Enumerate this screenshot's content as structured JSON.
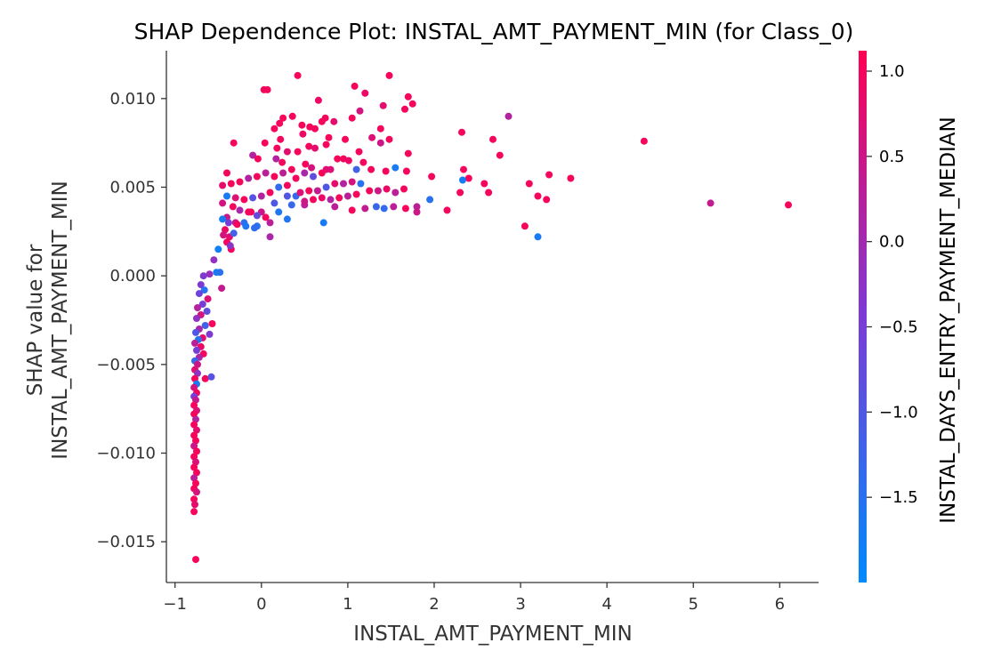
{
  "chart_data": {
    "type": "scatter",
    "title": "SHAP Dependence Plot: INSTAL_AMT_PAYMENT_MIN (for Class_0)",
    "xlabel": "INSTAL_AMT_PAYMENT_MIN",
    "ylabel_lines": [
      "SHAP value for",
      "INSTAL_AMT_PAYMENT_MIN"
    ],
    "xlim": [
      -1.1,
      6.45
    ],
    "ylim": [
      -0.0173,
      0.0127
    ],
    "x_ticks": [
      -1,
      0,
      1,
      2,
      3,
      4,
      5,
      6
    ],
    "x_tick_labels": [
      "−1",
      "0",
      "1",
      "2",
      "3",
      "4",
      "5",
      "6"
    ],
    "y_ticks": [
      -0.015,
      -0.01,
      -0.005,
      0.0,
      0.005,
      0.01
    ],
    "y_tick_labels": [
      "−0.015",
      "−0.010",
      "−0.005",
      "0.000",
      "0.005",
      "0.010"
    ],
    "grid": false,
    "colorbar": {
      "label": "INSTAL_DAYS_ENTRY_PAYMENT_MEDIAN",
      "range": [
        -2.0,
        1.12
      ],
      "ticks": [
        1.0,
        0.5,
        0.0,
        -0.5,
        -1.0,
        -1.5
      ],
      "tick_labels": [
        "1.0",
        "0.5",
        "0.0",
        "−0.5",
        "−1.0",
        "−1.5"
      ],
      "colors": [
        "#008afb",
        "#7c3bd6",
        "#ff0052"
      ]
    },
    "points": [
      {
        "x": 0.42,
        "y": 0.0113,
        "c": 1.0
      },
      {
        "x": 1.48,
        "y": 0.0113,
        "c": 1.0
      },
      {
        "x": 1.08,
        "y": 0.0107,
        "c": 1.0
      },
      {
        "x": 0.03,
        "y": 0.0105,
        "c": 1.0
      },
      {
        "x": 0.07,
        "y": 0.0105,
        "c": 1.0
      },
      {
        "x": 1.2,
        "y": 0.0103,
        "c": 0.9
      },
      {
        "x": 1.7,
        "y": 0.0101,
        "c": 1.0
      },
      {
        "x": 0.66,
        "y": 0.0099,
        "c": 0.9
      },
      {
        "x": 1.75,
        "y": 0.0097,
        "c": 1.0
      },
      {
        "x": 1.41,
        "y": 0.0096,
        "c": 0.8
      },
      {
        "x": 1.66,
        "y": 0.0094,
        "c": 1.0
      },
      {
        "x": 1.14,
        "y": 0.0093,
        "c": 0.6
      },
      {
        "x": 2.86,
        "y": 0.009,
        "c": 0.2
      },
      {
        "x": 0.36,
        "y": 0.009,
        "c": 1.0
      },
      {
        "x": 0.25,
        "y": 0.0089,
        "c": 1.0
      },
      {
        "x": 1.05,
        "y": 0.0089,
        "c": 1.0
      },
      {
        "x": 0.74,
        "y": 0.0089,
        "c": 1.0
      },
      {
        "x": 0.7,
        "y": 0.0087,
        "c": 1.0
      },
      {
        "x": 0.21,
        "y": 0.0086,
        "c": 1.0
      },
      {
        "x": 0.84,
        "y": 0.0087,
        "c": 0.8
      },
      {
        "x": 0.47,
        "y": 0.0085,
        "c": 1.0
      },
      {
        "x": 0.56,
        "y": 0.0084,
        "c": 1.0
      },
      {
        "x": 0.62,
        "y": 0.0083,
        "c": 1.0
      },
      {
        "x": 1.38,
        "y": 0.0083,
        "c": 1.0
      },
      {
        "x": 2.32,
        "y": 0.0081,
        "c": 1.0
      },
      {
        "x": 0.15,
        "y": 0.0083,
        "c": 1.0
      },
      {
        "x": 0.48,
        "y": 0.008,
        "c": 0.9
      },
      {
        "x": 0.78,
        "y": 0.0078,
        "c": 1.0
      },
      {
        "x": 1.28,
        "y": 0.0078,
        "c": 0.7
      },
      {
        "x": 0.97,
        "y": 0.0077,
        "c": 1.0
      },
      {
        "x": 2.68,
        "y": 0.0077,
        "c": 1.0
      },
      {
        "x": 1.48,
        "y": 0.0077,
        "c": 1.0
      },
      {
        "x": 1.38,
        "y": 0.0075,
        "c": 0.5
      },
      {
        "x": 0.22,
        "y": 0.0077,
        "c": 1.0
      },
      {
        "x": 0.04,
        "y": 0.0075,
        "c": 1.0
      },
      {
        "x": 0.75,
        "y": 0.0074,
        "c": 1.0
      },
      {
        "x": 0.55,
        "y": 0.0073,
        "c": 1.0
      },
      {
        "x": 0.62,
        "y": 0.0072,
        "c": 0.8
      },
      {
        "x": -0.32,
        "y": 0.0075,
        "c": 1.0
      },
      {
        "x": 4.43,
        "y": 0.0076,
        "c": 1.0
      },
      {
        "x": 0.42,
        "y": 0.007,
        "c": 1.0
      },
      {
        "x": 0.18,
        "y": 0.0072,
        "c": 1.0
      },
      {
        "x": 0.3,
        "y": 0.007,
        "c": 0.8
      },
      {
        "x": 1.13,
        "y": 0.007,
        "c": 1.0
      },
      {
        "x": 1.7,
        "y": 0.0069,
        "c": 1.0
      },
      {
        "x": 2.76,
        "y": 0.0068,
        "c": 1.0
      },
      {
        "x": 0.88,
        "y": 0.0066,
        "c": 1.0
      },
      {
        "x": 0.95,
        "y": 0.0066,
        "c": 1.0
      },
      {
        "x": 1.01,
        "y": 0.0065,
        "c": 0.9
      },
      {
        "x": 1.18,
        "y": 0.0064,
        "c": 1.0
      },
      {
        "x": -0.1,
        "y": 0.0068,
        "c": 0.2
      },
      {
        "x": -0.04,
        "y": 0.0066,
        "c": 1.0
      },
      {
        "x": 0.17,
        "y": 0.0066,
        "c": 0.2
      },
      {
        "x": 0.24,
        "y": 0.0064,
        "c": 1.0
      },
      {
        "x": 0.51,
        "y": 0.0063,
        "c": 1.0
      },
      {
        "x": 0.58,
        "y": 0.0061,
        "c": 0.6
      },
      {
        "x": 0.75,
        "y": 0.006,
        "c": 0.8
      },
      {
        "x": 1.1,
        "y": 0.006,
        "c": -1.2
      },
      {
        "x": 1.27,
        "y": 0.006,
        "c": 1.0
      },
      {
        "x": 1.55,
        "y": 0.0061,
        "c": -1.7
      },
      {
        "x": 1.44,
        "y": 0.0059,
        "c": 1.0
      },
      {
        "x": 1.68,
        "y": 0.0059,
        "c": 1.0
      },
      {
        "x": 2.34,
        "y": 0.006,
        "c": 1.0
      },
      {
        "x": 1.97,
        "y": 0.0056,
        "c": 1.0
      },
      {
        "x": 2.4,
        "y": 0.0055,
        "c": 1.0
      },
      {
        "x": 2.58,
        "y": 0.0052,
        "c": 1.0
      },
      {
        "x": 3.1,
        "y": 0.0052,
        "c": 1.0
      },
      {
        "x": 3.33,
        "y": 0.0057,
        "c": 1.0
      },
      {
        "x": 3.58,
        "y": 0.0055,
        "c": 1.0
      },
      {
        "x": 2.33,
        "y": 0.0054,
        "c": -1.7
      },
      {
        "x": 2.3,
        "y": 0.0047,
        "c": 1.0
      },
      {
        "x": 2.63,
        "y": 0.0047,
        "c": 1.0
      },
      {
        "x": 3.2,
        "y": 0.0045,
        "c": 1.0
      },
      {
        "x": 3.3,
        "y": 0.0043,
        "c": 1.0
      },
      {
        "x": 5.2,
        "y": 0.0041,
        "c": 0.4
      },
      {
        "x": 6.1,
        "y": 0.004,
        "c": 1.0
      },
      {
        "x": 3.05,
        "y": 0.0028,
        "c": 1.0
      },
      {
        "x": 3.2,
        "y": 0.0022,
        "c": -1.7
      },
      {
        "x": 2.15,
        "y": 0.0037,
        "c": 1.0
      },
      {
        "x": 1.95,
        "y": 0.0043,
        "c": -1.5
      },
      {
        "x": 1.8,
        "y": 0.0039,
        "c": 0.3
      },
      {
        "x": 1.8,
        "y": 0.0036,
        "c": 0.5
      },
      {
        "x": 1.67,
        "y": 0.0038,
        "c": 1.0
      },
      {
        "x": 1.53,
        "y": 0.0039,
        "c": 0.3
      },
      {
        "x": 1.42,
        "y": 0.0038,
        "c": -1.4
      },
      {
        "x": 1.33,
        "y": 0.0039,
        "c": -1.3
      },
      {
        "x": 1.2,
        "y": 0.0038,
        "c": 0.4
      },
      {
        "x": 1.05,
        "y": 0.0037,
        "c": 1.0
      },
      {
        "x": 0.72,
        "y": 0.003,
        "c": -1.7
      },
      {
        "x": 0.85,
        "y": 0.0039,
        "c": 0.3
      },
      {
        "x": 0.5,
        "y": 0.004,
        "c": 0.3
      },
      {
        "x": 0.35,
        "y": 0.004,
        "c": -1.3
      },
      {
        "x": 0.15,
        "y": 0.0041,
        "c": -1.0
      },
      {
        "x": 0.0,
        "y": 0.0036,
        "c": 0.5
      },
      {
        "x": -0.12,
        "y": 0.0036,
        "c": 1.0
      },
      {
        "x": -0.2,
        "y": 0.003,
        "c": -1.4
      },
      {
        "x": -0.3,
        "y": 0.003,
        "c": 0.5
      },
      {
        "x": -0.4,
        "y": 0.0033,
        "c": 0.5
      },
      {
        "x": -0.37,
        "y": 0.0022,
        "c": 0.8
      },
      {
        "x": -0.35,
        "y": 0.0015,
        "c": 1.0
      },
      {
        "x": 0.1,
        "y": 0.0022,
        "c": 0.1
      },
      {
        "x": -0.05,
        "y": 0.0028,
        "c": -1.5
      },
      {
        "x": 0.3,
        "y": 0.0032,
        "c": -1.6
      },
      {
        "x": 0.1,
        "y": 0.003,
        "c": 0.3
      },
      {
        "x": 0.2,
        "y": 0.0036,
        "c": -1.6
      },
      {
        "x": 0.3,
        "y": 0.0045,
        "c": -1.0
      },
      {
        "x": 0.4,
        "y": 0.0045,
        "c": -1.3
      },
      {
        "x": 0.45,
        "y": 0.0047,
        "c": 0.7
      },
      {
        "x": 0.55,
        "y": 0.0048,
        "c": 1.0
      },
      {
        "x": 0.65,
        "y": 0.0048,
        "c": 0.4
      },
      {
        "x": 0.75,
        "y": 0.005,
        "c": -1.0
      },
      {
        "x": 0.85,
        "y": 0.0052,
        "c": 0.8
      },
      {
        "x": 0.95,
        "y": 0.0052,
        "c": 0.2
      },
      {
        "x": 1.05,
        "y": 0.0053,
        "c": 0.6
      },
      {
        "x": 1.15,
        "y": 0.0052,
        "c": -1.5
      },
      {
        "x": 1.25,
        "y": 0.0048,
        "c": 1.0
      },
      {
        "x": 1.35,
        "y": 0.0048,
        "c": 0.5
      },
      {
        "x": 1.45,
        "y": 0.0049,
        "c": 0.9
      },
      {
        "x": 1.55,
        "y": 0.0047,
        "c": 0.3
      },
      {
        "x": 1.65,
        "y": 0.0049,
        "c": 1.0
      },
      {
        "x": 1.0,
        "y": 0.0045,
        "c": 0.3
      },
      {
        "x": 1.1,
        "y": 0.0046,
        "c": 1.0
      },
      {
        "x": 0.9,
        "y": 0.0044,
        "c": 1.0
      },
      {
        "x": 0.8,
        "y": 0.0043,
        "c": 0.2
      },
      {
        "x": 0.7,
        "y": 0.0044,
        "c": 0.9
      },
      {
        "x": 0.6,
        "y": 0.0043,
        "c": 1.0
      },
      {
        "x": 0.5,
        "y": 0.0042,
        "c": 0.5
      },
      {
        "x": 0.4,
        "y": 0.0055,
        "c": 1.0
      },
      {
        "x": 0.5,
        "y": 0.0058,
        "c": 0.1
      },
      {
        "x": 0.6,
        "y": 0.0056,
        "c": -0.8
      },
      {
        "x": 0.7,
        "y": 0.0058,
        "c": 1.0
      },
      {
        "x": 0.8,
        "y": 0.006,
        "c": 0.7
      },
      {
        "x": 0.35,
        "y": 0.006,
        "c": 1.0
      },
      {
        "x": 0.25,
        "y": 0.0058,
        "c": 0.3
      },
      {
        "x": 0.15,
        "y": 0.0056,
        "c": 1.0
      },
      {
        "x": 0.05,
        "y": 0.0058,
        "c": 0.3
      },
      {
        "x": -0.05,
        "y": 0.0056,
        "c": 1.0
      },
      {
        "x": -0.15,
        "y": 0.0055,
        "c": 0.2
      },
      {
        "x": -0.25,
        "y": 0.0053,
        "c": 1.0
      },
      {
        "x": -0.35,
        "y": 0.0052,
        "c": 1.0
      },
      {
        "x": -0.45,
        "y": 0.0051,
        "c": 0.8
      },
      {
        "x": -0.4,
        "y": 0.0045,
        "c": -1.7
      },
      {
        "x": -0.3,
        "y": 0.0044,
        "c": 0.7
      },
      {
        "x": -0.2,
        "y": 0.0043,
        "c": 1.0
      },
      {
        "x": -0.1,
        "y": 0.0044,
        "c": -0.9
      },
      {
        "x": 0.0,
        "y": 0.0045,
        "c": 0.2
      },
      {
        "x": 0.1,
        "y": 0.0047,
        "c": 1.0
      },
      {
        "x": 0.2,
        "y": 0.005,
        "c": -1.4
      },
      {
        "x": 0.3,
        "y": 0.0051,
        "c": 1.0
      },
      {
        "x": -0.4,
        "y": 0.0058,
        "c": 1.0
      },
      {
        "x": -0.45,
        "y": 0.0041,
        "c": 0.6
      },
      {
        "x": -0.33,
        "y": 0.0039,
        "c": 1.0
      },
      {
        "x": -0.25,
        "y": 0.0037,
        "c": 0.1
      },
      {
        "x": -0.15,
        "y": 0.0036,
        "c": 1.0
      },
      {
        "x": -0.05,
        "y": 0.0034,
        "c": -0.7
      },
      {
        "x": 0.05,
        "y": 0.0033,
        "c": 1.0
      },
      {
        "x": -0.45,
        "y": 0.0032,
        "c": -1.7
      },
      {
        "x": -0.38,
        "y": 0.003,
        "c": -0.5
      },
      {
        "x": -0.28,
        "y": 0.0029,
        "c": 1.0
      },
      {
        "x": -0.18,
        "y": 0.0028,
        "c": -1.6
      },
      {
        "x": -0.08,
        "y": 0.0027,
        "c": -1.4
      },
      {
        "x": -0.42,
        "y": 0.0026,
        "c": 0.9
      },
      {
        "x": -0.32,
        "y": 0.0024,
        "c": -1.2
      },
      {
        "x": -0.44,
        "y": 0.0023,
        "c": 0.6
      },
      {
        "x": -0.4,
        "y": 0.0019,
        "c": 1.0
      },
      {
        "x": -0.36,
        "y": 0.0017,
        "c": -0.3
      },
      {
        "x": -0.5,
        "y": 0.0015,
        "c": -1.8
      },
      {
        "x": -0.55,
        "y": 0.0009,
        "c": -0.2
      },
      {
        "x": -0.52,
        "y": 0.0002,
        "c": -1.7
      },
      {
        "x": -0.48,
        "y": 0.0002,
        "c": -1.5
      },
      {
        "x": -0.46,
        "y": -0.0007,
        "c": 0.4
      },
      {
        "x": -0.6,
        "y": 0.0001,
        "c": -0.1
      },
      {
        "x": -0.67,
        "y": 0.0,
        "c": -0.4
      },
      {
        "x": -0.7,
        "y": -0.0005,
        "c": -0.4
      },
      {
        "x": -0.66,
        "y": -0.0008,
        "c": -1.5
      },
      {
        "x": -0.72,
        "y": -0.001,
        "c": -0.6
      },
      {
        "x": -0.62,
        "y": -0.0013,
        "c": 0.7
      },
      {
        "x": -0.68,
        "y": -0.0016,
        "c": -0.5
      },
      {
        "x": -0.74,
        "y": -0.0018,
        "c": 0.2
      },
      {
        "x": -0.63,
        "y": -0.002,
        "c": -0.8
      },
      {
        "x": -0.7,
        "y": -0.0022,
        "c": 0.6
      },
      {
        "x": -0.75,
        "y": -0.0024,
        "c": -0.2
      },
      {
        "x": -0.57,
        "y": -0.0027,
        "c": 1.0
      },
      {
        "x": -0.65,
        "y": -0.0028,
        "c": -1.2
      },
      {
        "x": -0.72,
        "y": -0.003,
        "c": 0.1
      },
      {
        "x": -0.76,
        "y": -0.0032,
        "c": -1.0
      },
      {
        "x": -0.6,
        "y": -0.0033,
        "c": -0.4
      },
      {
        "x": -0.68,
        "y": -0.0035,
        "c": 0.8
      },
      {
        "x": -0.73,
        "y": -0.0036,
        "c": -1.6
      },
      {
        "x": -0.77,
        "y": -0.0038,
        "c": 0.3
      },
      {
        "x": -0.7,
        "y": -0.004,
        "c": 0.9
      },
      {
        "x": -0.75,
        "y": -0.0042,
        "c": -0.5
      },
      {
        "x": -0.67,
        "y": -0.0044,
        "c": 1.0
      },
      {
        "x": -0.72,
        "y": -0.0046,
        "c": 0.1
      },
      {
        "x": -0.77,
        "y": -0.0048,
        "c": -1.3
      },
      {
        "x": -0.74,
        "y": -0.005,
        "c": 0.5
      },
      {
        "x": -0.77,
        "y": -0.0053,
        "c": 0.8
      },
      {
        "x": -0.74,
        "y": -0.0055,
        "c": -0.2
      },
      {
        "x": -0.77,
        "y": -0.0058,
        "c": 1.0
      },
      {
        "x": -0.65,
        "y": -0.0058,
        "c": 1.0
      },
      {
        "x": -0.58,
        "y": -0.0057,
        "c": -0.9
      },
      {
        "x": -0.75,
        "y": -0.0061,
        "c": -1.7
      },
      {
        "x": -0.78,
        "y": -0.0063,
        "c": 0.6
      },
      {
        "x": -0.75,
        "y": -0.0066,
        "c": 1.0
      },
      {
        "x": -0.78,
        "y": -0.0068,
        "c": -0.5
      },
      {
        "x": -0.76,
        "y": -0.007,
        "c": 0.4
      },
      {
        "x": -0.78,
        "y": -0.0073,
        "c": 1.0
      },
      {
        "x": -0.75,
        "y": -0.0076,
        "c": 0.7
      },
      {
        "x": -0.78,
        "y": -0.0078,
        "c": 1.0
      },
      {
        "x": -0.76,
        "y": -0.0081,
        "c": 0.2
      },
      {
        "x": -0.78,
        "y": -0.0084,
        "c": 1.0
      },
      {
        "x": -0.75,
        "y": -0.0087,
        "c": 0.8
      },
      {
        "x": -0.78,
        "y": -0.009,
        "c": 1.0
      },
      {
        "x": -0.76,
        "y": -0.0093,
        "c": 1.0
      },
      {
        "x": -0.78,
        "y": -0.0096,
        "c": 0.5
      },
      {
        "x": -0.75,
        "y": -0.0099,
        "c": 1.0
      },
      {
        "x": -0.78,
        "y": -0.0102,
        "c": 1.0
      },
      {
        "x": -0.76,
        "y": -0.0105,
        "c": 0.7
      },
      {
        "x": -0.78,
        "y": -0.0108,
        "c": 1.0
      },
      {
        "x": -0.75,
        "y": -0.0111,
        "c": 1.0
      },
      {
        "x": -0.78,
        "y": -0.0114,
        "c": 0.3
      },
      {
        "x": -0.76,
        "y": -0.0117,
        "c": 1.0
      },
      {
        "x": -0.78,
        "y": -0.012,
        "c": 1.0
      },
      {
        "x": -0.75,
        "y": -0.0122,
        "c": 0.6
      },
      {
        "x": -0.78,
        "y": -0.0126,
        "c": 1.0
      },
      {
        "x": -0.77,
        "y": -0.0129,
        "c": 0.8
      },
      {
        "x": -0.78,
        "y": -0.0133,
        "c": 1.0
      },
      {
        "x": -0.76,
        "y": -0.016,
        "c": 1.0
      }
    ]
  }
}
